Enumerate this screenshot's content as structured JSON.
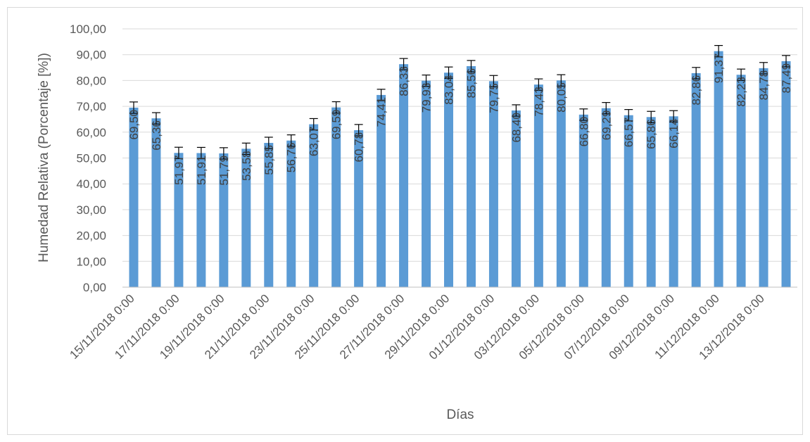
{
  "chart_data": {
    "type": "bar",
    "xlabel": "Días",
    "ylabel": "Humedad Relativa (Porcentaje [%])",
    "ylim": [
      0,
      100
    ],
    "ytick_step": 10,
    "ytick_labels": [
      "0,00",
      "10,00",
      "20,00",
      "30,00",
      "40,00",
      "50,00",
      "60,00",
      "70,00",
      "80,00",
      "90,00",
      "100,00"
    ],
    "grid": "horizontal",
    "bar_color": "#5b9bd5",
    "error_bar": 2.2,
    "x_tick_labels": [
      "15/11/2018 0:00",
      "17/11/2018 0:00",
      "19/11/2018 0:00",
      "21/11/2018 0:00",
      "23/11/2018 0:00",
      "25/11/2018 0:00",
      "27/11/2018 0:00",
      "29/11/2018 0:00",
      "01/12/2018 0:00",
      "03/12/2018 0:00",
      "05/12/2018 0:00",
      "07/12/2018 0:00",
      "09/12/2018 0:00",
      "11/12/2018 0:00",
      "13/12/2018 0:00"
    ],
    "values": [
      69.5,
      65.36,
      51.97,
      51.91,
      51.79,
      53.58,
      55.85,
      56.76,
      63.07,
      69.59,
      60.78,
      74.41,
      86.33,
      79.93,
      83.04,
      85.56,
      79.75,
      68.4,
      78.43,
      80.05,
      66.8,
      69.29,
      66.57,
      65.86,
      66.14,
      82.86,
      91.37,
      82.23,
      84.78,
      87.49
    ],
    "data_labels": [
      "69,50",
      "65,36",
      "51,97",
      "51,91",
      "51,79",
      "53,58",
      "55,85",
      "56,76",
      "63,07",
      "69,59",
      "60,78",
      "74,41",
      "86,33",
      "79,93",
      "83,04",
      "85,56",
      "79,75",
      "68,40",
      "78,43",
      "80,05",
      "66,80",
      "69,29",
      "66,57",
      "65,86",
      "66,14",
      "82,86",
      "91,37",
      "82,23",
      "84,78",
      "87,49"
    ]
  }
}
